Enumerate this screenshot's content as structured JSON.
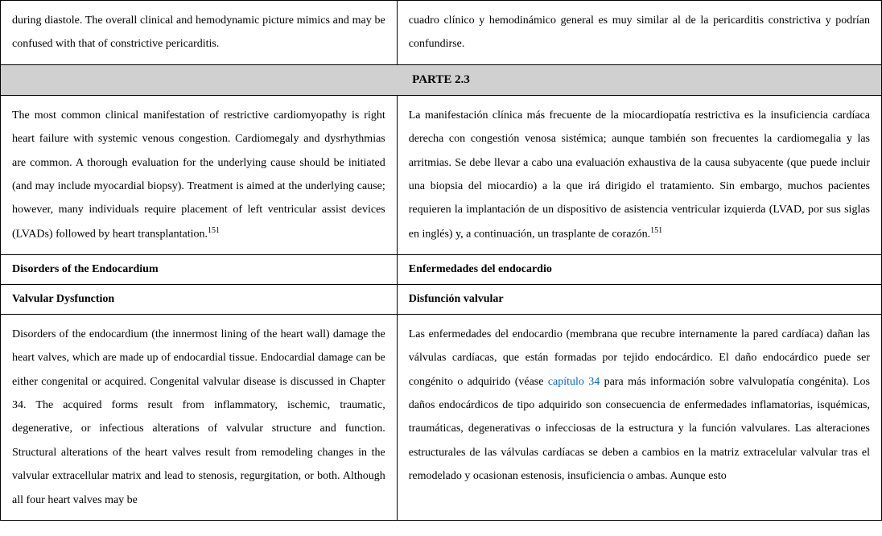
{
  "layout": {
    "left_width_pct": 45,
    "right_width_pct": 55,
    "background_color": "#ffffff",
    "band_background": "#d0d0d0",
    "border_color": "#000000",
    "font_family": "Times New Roman",
    "body_font_size_pt": 11,
    "line_height": 2.1,
    "link_color": "#0066cc"
  },
  "row_top": {
    "left": "during diastole. The overall clinical and hemodynamic picture mimics and may be confused with that of constrictive pericarditis.",
    "right": "cuadro clínico y hemodinámico general es muy similar al de la pericarditis constrictiva y podrían confundirse."
  },
  "section_band": "PARTE 2.3",
  "row_manifestation": {
    "left_pre": "The most common clinical manifestation of restrictive cardiomyopathy is right heart failure with systemic venous congestion. Cardiomegaly and dysrhythmias are common. A thorough evaluation for the underlying cause should be initiated (and may include myocardial biopsy). Treatment is aimed at the underlying cause; however, many individuals require placement of left ventricular assist devices (LVADs) followed by heart transplantation.",
    "left_sup": "151",
    "right_pre": "La manifestación clínica más frecuente de la miocardiopatía restrictiva es la insuficiencia cardíaca derecha con congestión venosa sistémica; aunque también son frecuentes la cardiomegalia y las arritmias. Se debe llevar a cabo una evaluación exhaustiva de la causa subyacente (que puede incluir una biopsia del miocardio) a la que irá dirigido el tratamiento. Sin embargo, muchos pacientes requieren la implantación de un dispositivo de asistencia ventricular izquierda (LVAD, por sus siglas en inglés) y, a continuación, un trasplante de corazón.",
    "right_sup": "151"
  },
  "row_heading1": {
    "left": "Disorders of the Endocardium",
    "right": "Enfermedades del endocardio"
  },
  "row_heading2": {
    "left": "Valvular Dysfunction",
    "right": "Disfunción valvular"
  },
  "row_endocardium": {
    "left": "Disorders of the endocardium (the innermost lining of the heart wall) damage the heart valves, which are made up of endocardial tissue. Endocardial damage can be either congenital or acquired. Congenital valvular disease is discussed in Chapter 34. The acquired forms result from inflammatory, ischemic, traumatic, degenerative, or infectious alterations of valvular structure and function. Structural alterations of the heart valves result from remodeling changes in the valvular extracellular matrix and lead to stenosis, regurgitation, or both. Although all four heart valves may be",
    "right_pre": "Las enfermedades del endocardio (membrana que recubre internamente la pared cardíaca) dañan las válvulas cardíacas, que están formadas por tejido endocárdico. El daño endocárdico puede ser congénito o adquirido (véase ",
    "right_link": "capítulo 34",
    "right_post": " para más información sobre valvulopatía congénita). Los daños endocárdicos de tipo adquirido son consecuencia de enfermedades inflamatorias, isquémicas, traumáticas, degenerativas o infecciosas de la estructura y la función valvulares. Las alteraciones estructurales de las válvulas cardíacas se deben a cambios en la matriz extracelular valvular tras el remodelado y ocasionan estenosis, insuficiencia o ambas. Aunque esto"
  }
}
